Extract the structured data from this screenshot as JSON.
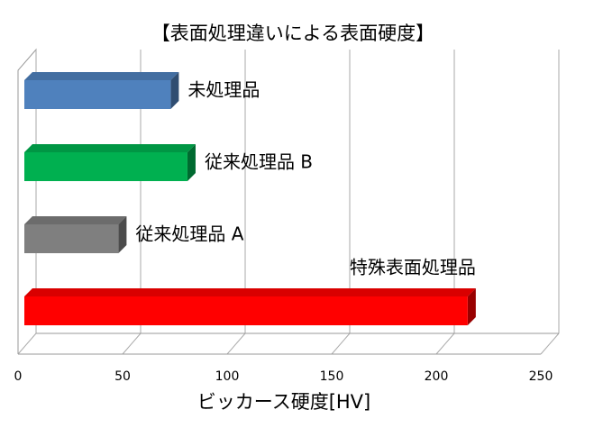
{
  "chart_data": {
    "type": "bar3d",
    "title": "【表面処理違いによる表面硬度】",
    "x_label": "ビッカース硬度[HV]",
    "categories": [
      "未処理品",
      "従来処理品 B",
      "従来処理品 A",
      "特殊表面処理品"
    ],
    "values": [
      70,
      78,
      45,
      212
    ],
    "colors": [
      "#4f81bd",
      "#00b050",
      "#7f7f7f",
      "#ff0000"
    ],
    "xlim": [
      0,
      250
    ],
    "xticks": [
      0,
      50,
      100,
      150,
      200,
      250
    ],
    "grid": true
  }
}
